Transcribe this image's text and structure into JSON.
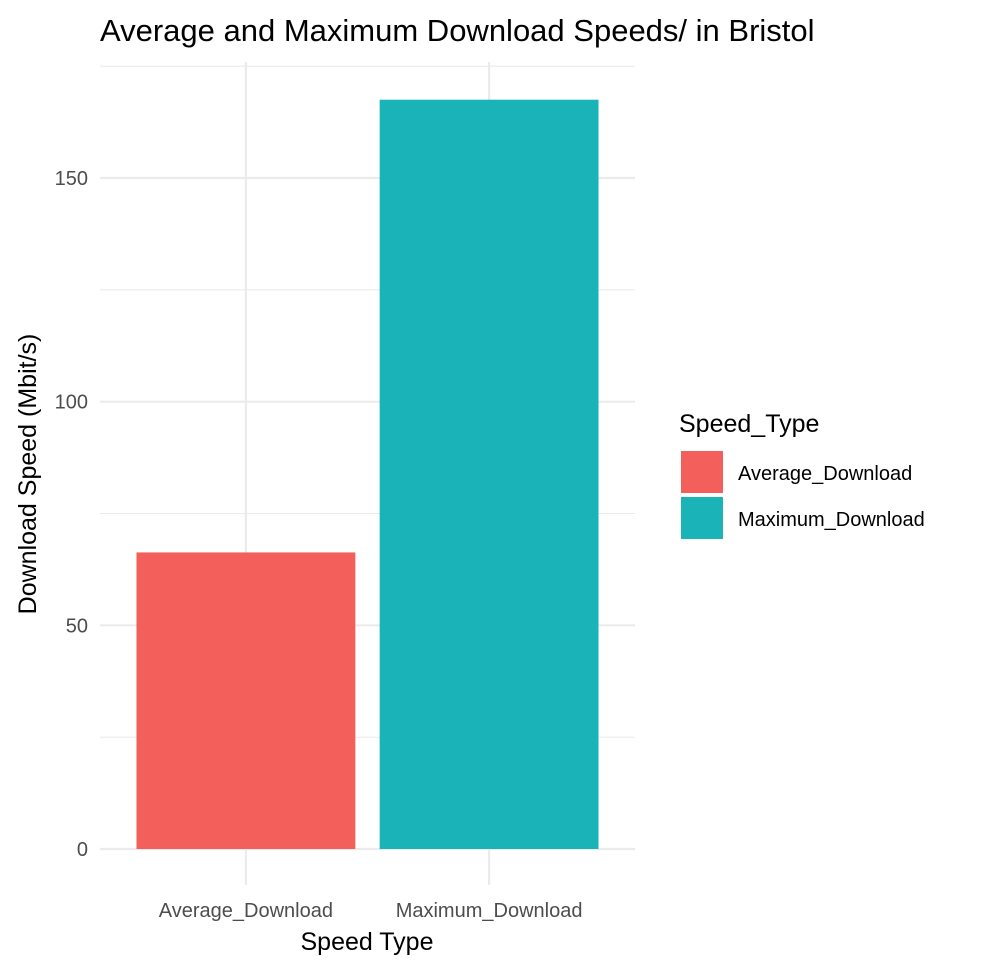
{
  "chart_data": {
    "type": "bar",
    "title": "Average and Maximum Download Speeds/ in Bristol",
    "xlabel": "Speed Type",
    "ylabel": "Download Speed (Mbit/s)",
    "categories": [
      "Average_Download",
      "Maximum_Download"
    ],
    "values": [
      66.3,
      167.5
    ],
    "colors": [
      "#F8766D",
      "#00BFC4"
    ],
    "bar_colors": [
      "#f3605c",
      "#1ab3b8"
    ],
    "ylim": [
      0,
      175
    ],
    "yticks": [
      0,
      50,
      100,
      150
    ],
    "ytick_labels": [
      "0",
      "50",
      "100",
      "150"
    ],
    "grid": true,
    "legend": {
      "title": "Speed_Type",
      "position": "right",
      "items": [
        "Average_Download",
        "Maximum_Download"
      ]
    }
  }
}
